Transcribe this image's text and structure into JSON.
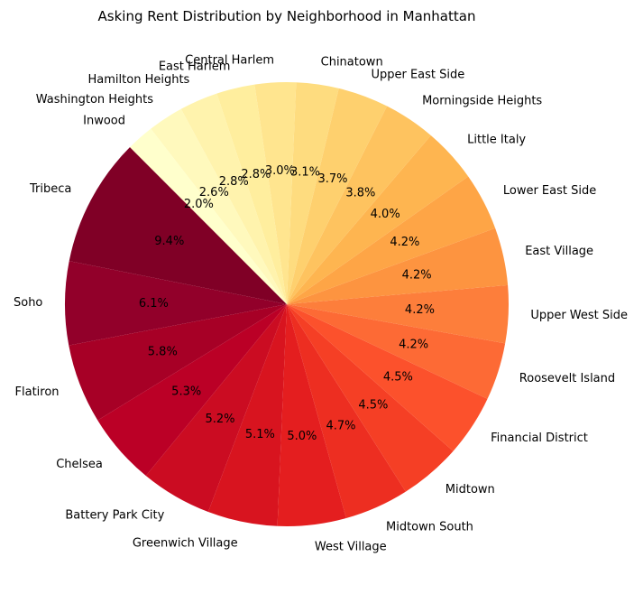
{
  "chart_data": {
    "type": "pie",
    "title": "Asking Rent Distribution by Neighborhood in Manhattan",
    "start_angle_deg": 135,
    "direction": "counterclockwise",
    "colormap": "YlOrRd (reversed: darkest for largest share)",
    "slices": [
      {
        "label": "Tribeca",
        "value": 9.4,
        "pct": "9.4%",
        "color": "#800026"
      },
      {
        "label": "Soho",
        "value": 6.1,
        "pct": "6.1%",
        "color": "#92002a"
      },
      {
        "label": "Flatiron",
        "value": 5.8,
        "pct": "5.8%",
        "color": "#a70026"
      },
      {
        "label": "Chelsea",
        "value": 5.3,
        "pct": "5.3%",
        "color": "#bb0026"
      },
      {
        "label": "Battery Park City",
        "value": 5.2,
        "pct": "5.2%",
        "color": "#cb0c22"
      },
      {
        "label": "Greenwich Village",
        "value": 5.1,
        "pct": "5.1%",
        "color": "#d8141f"
      },
      {
        "label": "West Village",
        "value": 5.0,
        "pct": "5.0%",
        "color": "#e41e1f"
      },
      {
        "label": "Midtown South",
        "value": 4.7,
        "pct": "4.7%",
        "color": "#ed2e21"
      },
      {
        "label": "Midtown",
        "value": 4.5,
        "pct": "4.5%",
        "color": "#f53f25"
      },
      {
        "label": "Financial District",
        "value": 4.5,
        "pct": "4.5%",
        "color": "#fc512c"
      },
      {
        "label": "Roosevelt Island",
        "value": 4.2,
        "pct": "4.2%",
        "color": "#fd6a35"
      },
      {
        "label": "Upper West Side",
        "value": 4.2,
        "pct": "4.2%",
        "color": "#fd7e3b"
      },
      {
        "label": "East Village",
        "value": 4.2,
        "pct": "4.2%",
        "color": "#fd9440"
      },
      {
        "label": "Lower East Side",
        "value": 4.2,
        "pct": "4.2%",
        "color": "#fea546"
      },
      {
        "label": "Little Italy",
        "value": 4.0,
        "pct": "4.0%",
        "color": "#feb550"
      },
      {
        "label": "Morningside Heights",
        "value": 3.8,
        "pct": "3.8%",
        "color": "#fec35f"
      },
      {
        "label": "Upper East Side",
        "value": 3.7,
        "pct": "3.7%",
        "color": "#fed06e"
      },
      {
        "label": "Chinatown",
        "value": 3.1,
        "pct": "3.1%",
        "color": "#fedc7f"
      },
      {
        "label": "Central Harlem",
        "value": 3.0,
        "pct": "3.0%",
        "color": "#ffe58f"
      },
      {
        "label": "East Harlem",
        "value": 2.8,
        "pct": "2.8%",
        "color": "#ffee9e"
      },
      {
        "label": "Hamilton Heights",
        "value": 2.8,
        "pct": "2.8%",
        "color": "#fff3ad"
      },
      {
        "label": "Washington Heights",
        "value": 2.6,
        "pct": "2.6%",
        "color": "#fff9bd"
      },
      {
        "label": "Inwood",
        "value": 2.0,
        "pct": "2.0%",
        "color": "#ffffcc"
      }
    ]
  }
}
